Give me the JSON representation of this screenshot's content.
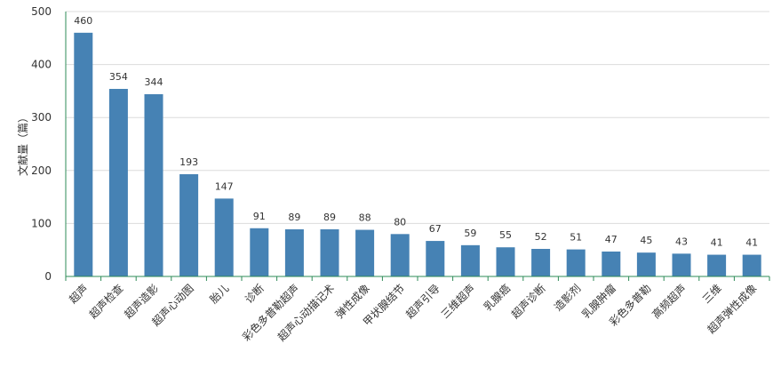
{
  "chart_data": {
    "type": "bar",
    "ylabel": "文献量（篇）",
    "ylim": [
      0,
      500
    ],
    "yticks": [
      0,
      100,
      200,
      300,
      400,
      500
    ],
    "grid": true,
    "categories": [
      "超声",
      "超声检查",
      "超声造影",
      "超声心动图",
      "胎儿",
      "诊断",
      "彩色多普勒超声",
      "超声心动描记术",
      "弹性成像",
      "甲状腺结节",
      "超声引导",
      "三维超声",
      "乳腺癌",
      "超声诊断",
      "造影剂",
      "乳腺肿瘤",
      "彩色多普勒",
      "高频超声",
      "三维",
      "超声弹性成像"
    ],
    "values": [
      460,
      354,
      344,
      193,
      147,
      91,
      89,
      89,
      88,
      80,
      67,
      59,
      55,
      52,
      51,
      47,
      45,
      43,
      41,
      41
    ],
    "bar_color": "#4682b4",
    "grid_color": "#dcdcdc",
    "axis_color": "#2e8b57"
  }
}
